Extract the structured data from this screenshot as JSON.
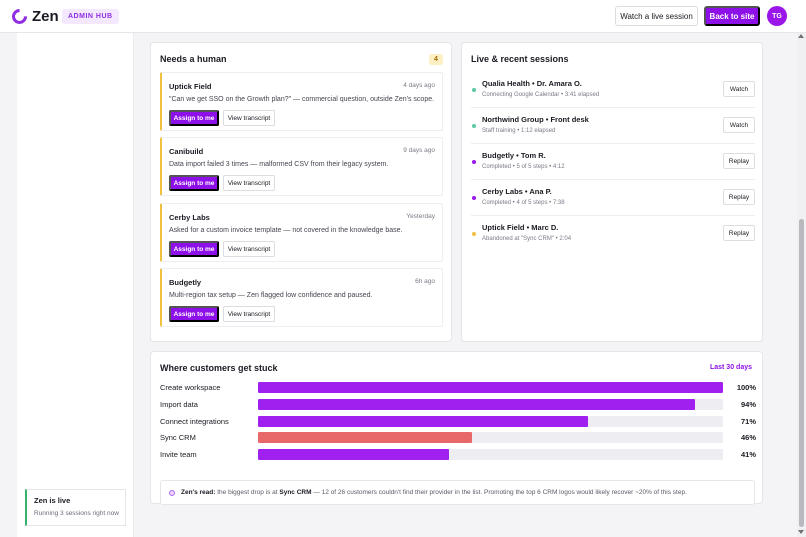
{
  "header": {
    "logo_text": "Zen",
    "admin_badge": "ADMIN HUB",
    "watch_live_label": "Watch a live session",
    "back_label": "Back to site",
    "avatar_initials": "TG"
  },
  "sidebar": {
    "status_title": "Zen is live",
    "status_sub": "Running 3 sessions right now"
  },
  "needs_human": {
    "title": "Needs a human",
    "count": "4",
    "assign_label": "Assign to me",
    "transcript_label": "View transcript",
    "tickets": [
      {
        "company": "Uptick Field",
        "time": "4 days ago",
        "desc": "\"Can we get SSO on the Growth plan?\" — commercial question, outside Zen's scope."
      },
      {
        "company": "Canibuild",
        "time": "9 days ago",
        "desc": "Data import failed 3 times — malformed CSV from their legacy system."
      },
      {
        "company": "Cerby Labs",
        "time": "Yesterday",
        "desc": "Asked for a custom invoice template — not covered in the knowledge base."
      },
      {
        "company": "Budgetly",
        "time": "6h ago",
        "desc": "Multi-region tax setup — Zen flagged low confidence and paused."
      }
    ]
  },
  "sessions": {
    "title": "Live & recent sessions",
    "items": [
      {
        "name": "Qualia Health • Dr. Amara O.",
        "status": "Connecting Google Calendar • 3:41 elapsed",
        "action": "Watch",
        "dot_color": "#5cc9a0"
      },
      {
        "name": "Northwind Group • Front desk",
        "status": "Staff training • 1:12 elapsed",
        "action": "Watch",
        "dot_color": "#5cc9a0"
      },
      {
        "name": "Budgetly • Tom R.",
        "status": "Completed • 5 of 5 steps • 4:12",
        "action": "Replay",
        "dot_color": "#9b16e8"
      },
      {
        "name": "Cerby Labs • Ana P.",
        "status": "Completed • 4 of 5 steps • 7:38",
        "action": "Replay",
        "dot_color": "#9b16e8"
      },
      {
        "name": "Uptick Field • Marc D.",
        "status": "Abandoned at \"Sync CRM\" • 2:04",
        "action": "Replay",
        "dot_color": "#f0c040"
      }
    ]
  },
  "stuck": {
    "title": "Where customers get stuck",
    "period": "Last 30 days",
    "rows": [
      {
        "label": "Create workspace",
        "pct_label": "100%",
        "value": 100,
        "color": "#a020f0"
      },
      {
        "label": "Import data",
        "pct_label": "94%",
        "value": 94,
        "color": "#a020f0"
      },
      {
        "label": "Connect integrations",
        "pct_label": "71%",
        "value": 71,
        "color": "#a020f0"
      },
      {
        "label": "Sync CRM",
        "pct_label": "46%",
        "value": 46,
        "color": "#e8686a"
      },
      {
        "label": "Invite team",
        "pct_label": "41%",
        "value": 41,
        "color": "#a020f0"
      }
    ],
    "insight": {
      "lead": "Zen's read:",
      "part1": " the biggest drop is at ",
      "highlight": "Sync CRM",
      "part2": " — 12 of 26 customers couldn't find their provider in the list. Promoting the top 6 CRM logos would likely recover ~20% of this step."
    }
  }
}
